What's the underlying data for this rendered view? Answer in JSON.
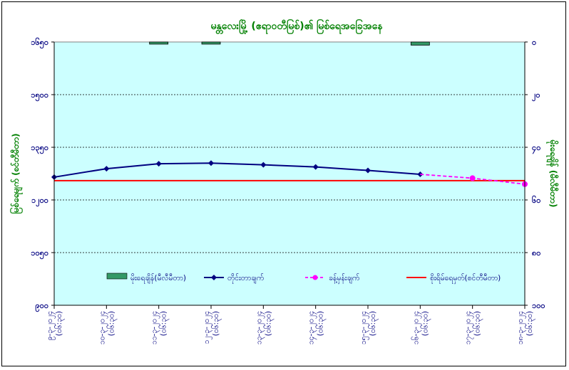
{
  "chart_data": {
    "type": "line",
    "title": "မန္တလေးမြို့ (ဧရာဝတီမြစ်)၏ မြစ်ရေအခြေအနေ",
    "ylabel": "မြစ်ရေမျက် (စင်တီမီတာ)",
    "y2label": "မိုးရေချိန် (မီလီမီတာ)",
    "ylim": [
      900,
      1650
    ],
    "y_ticks": [
      "၉၀၀",
      "၁၀၅၀",
      "၁၂၀၀",
      "၁၃၅၀",
      "၁၅၀၀",
      "၁၆၅၀"
    ],
    "y2lim": [
      0,
      100
    ],
    "y2_ticks": [
      "၀",
      "၂၀",
      "၄၀",
      "၆၀",
      "၈၀",
      "၁၀၀"
    ],
    "categories": [
      "၉-၃-၂၀၂၄ (၀၆:၃၀)",
      "၁၀-၃-၂၀၂၄ (၀၆:၃၀)",
      "၁၁-၃-၂၀၂၄ (၀၆:၃၀)",
      "၁၂-၃-၂၀၂၄ (၀၆:၃၀)",
      "၁၃-၃-၂၀၂၄ (၀၆:၃၀)",
      "၁၄-၃-၂၀၂၄ (၀၆:၃၀)",
      "၁၅-၃-၂၀၂၄ (၀၆:၃၀)",
      "၁၆-၃-၂၀၂၄ (၀၆:၃၀)",
      "၁၇-၃-၂၀၂၄ (၀၆:၃၀)",
      "၁၈-၃-၂၀၂၄ (၀၆:၃၀)"
    ],
    "series": [
      {
        "name": "မိုးရေချိန်(မီလီမီတာ)",
        "kind": "bar",
        "axis": "right",
        "values": [
          null,
          null,
          0.6,
          0.6,
          null,
          null,
          null,
          1.2,
          null,
          null
        ],
        "color": "#339966"
      },
      {
        "name": "တိုင်းတာချက်",
        "kind": "line",
        "axis": "left",
        "values": [
          1265,
          1289,
          1303,
          1305,
          1300,
          1294,
          1284,
          1273,
          null,
          null
        ],
        "color": "#000080"
      },
      {
        "name": "ခန့်မှန်းချက်",
        "kind": "dashed",
        "axis": "left",
        "values": [
          null,
          null,
          null,
          null,
          null,
          null,
          null,
          null,
          1262,
          1245
        ],
        "color": "#ff00ff"
      },
      {
        "name": "စိုးရိမ်ရေမှတ်(စင်တီမီတာ)",
        "kind": "hline",
        "axis": "left",
        "value": 1255,
        "color": "#ff0000"
      }
    ],
    "forecast_start_from_index": 8,
    "grid": true,
    "legend_position": "bottom-inside",
    "background_color": "#ccffff",
    "title_color": "#008000",
    "axis_color": "#000080"
  }
}
